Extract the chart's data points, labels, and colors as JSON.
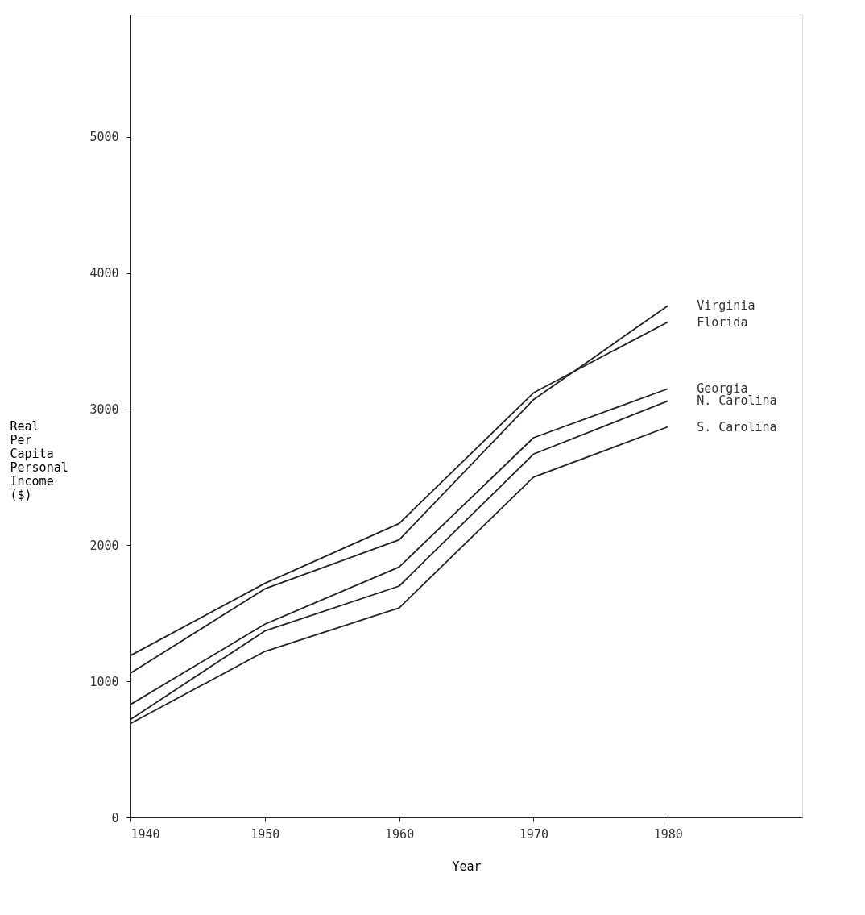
{
  "chart_data": {
    "type": "line",
    "xlabel": "Year",
    "ylabel": "Real Per Capita Personal Income ($)",
    "x": [
      1940,
      1950,
      1960,
      1970,
      1980
    ],
    "series": [
      {
        "name": "Virginia",
        "color": "#222222",
        "values": [
          1060,
          1680,
          2040,
          3070,
          3760
        ]
      },
      {
        "name": "Florida",
        "color": "#222222",
        "values": [
          1190,
          1720,
          2160,
          3120,
          3640
        ]
      },
      {
        "name": "Georgia",
        "color": "#222222",
        "values": [
          830,
          1420,
          1840,
          2790,
          3150
        ]
      },
      {
        "name": "N. Carolina",
        "color": "#222222",
        "values": [
          720,
          1370,
          1700,
          2670,
          3060
        ]
      },
      {
        "name": "S. Carolina",
        "color": "#222222",
        "values": [
          690,
          1220,
          1540,
          2500,
          2870
        ]
      }
    ],
    "xlim": [
      1940,
      1990
    ],
    "ylim": [
      0,
      5900
    ],
    "xticks": [
      1940,
      1950,
      1960,
      1970,
      1980
    ],
    "yticks": [
      0,
      1000,
      2000,
      3000,
      4000,
      5000
    ],
    "grid": false,
    "legend": false,
    "marker": "none",
    "line_style": "solid"
  }
}
